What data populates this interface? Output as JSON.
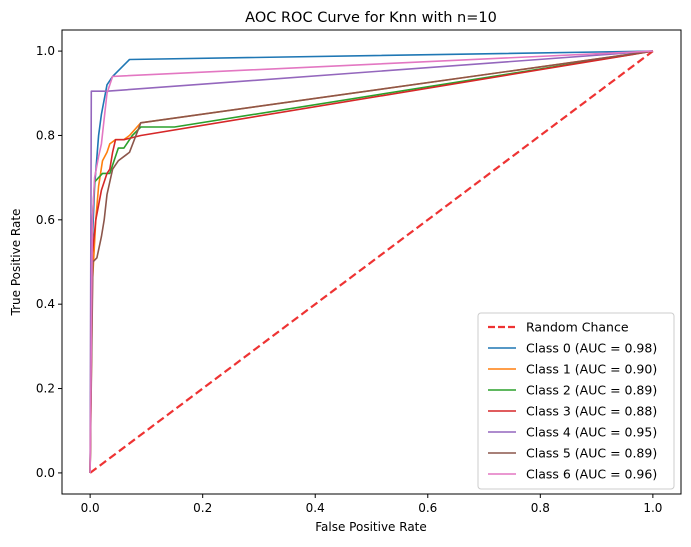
{
  "chart_data": {
    "type": "line",
    "title": "AOC ROC Curve for Knn with n=10",
    "xlabel": "False Positive Rate",
    "ylabel": "True Positive Rate",
    "xlim": [
      -0.05,
      1.05
    ],
    "ylim": [
      -0.05,
      1.05
    ],
    "xticks": [
      "0.0",
      "0.2",
      "0.4",
      "0.6",
      "0.8",
      "1.0"
    ],
    "yticks": [
      "0.0",
      "0.2",
      "0.4",
      "0.6",
      "0.8",
      "1.0"
    ],
    "grid": false,
    "legend_position": "lower-right",
    "series": [
      {
        "name": "Random Chance",
        "color": "#ee3333",
        "dashed": true,
        "x": [
          0,
          1
        ],
        "y": [
          0,
          1
        ]
      },
      {
        "name": "Class 0 (AUC = 0.98)",
        "color": "#1f77b4",
        "x": [
          0,
          0.004,
          0.008,
          0.015,
          0.02,
          0.03,
          0.04,
          0.07,
          1.0
        ],
        "y": [
          0,
          0.55,
          0.68,
          0.8,
          0.85,
          0.92,
          0.94,
          0.98,
          1.0
        ]
      },
      {
        "name": "Class 1 (AUC = 0.90)",
        "color": "#ff7f0e",
        "x": [
          0,
          0.004,
          0.01,
          0.015,
          0.022,
          0.03,
          0.035,
          0.045,
          0.06,
          0.07,
          0.09,
          1.0
        ],
        "y": [
          0,
          0.45,
          0.6,
          0.68,
          0.74,
          0.76,
          0.78,
          0.79,
          0.79,
          0.8,
          0.83,
          1.0
        ]
      },
      {
        "name": "Class 2 (AUC = 0.89)",
        "color": "#2ca02c",
        "x": [
          0,
          0.004,
          0.008,
          0.015,
          0.022,
          0.035,
          0.05,
          0.06,
          0.075,
          0.09,
          0.15,
          1.0
        ],
        "y": [
          0,
          0.6,
          0.69,
          0.7,
          0.71,
          0.71,
          0.77,
          0.77,
          0.8,
          0.82,
          0.82,
          1.0
        ]
      },
      {
        "name": "Class 3 (AUC = 0.88)",
        "color": "#d62728",
        "x": [
          0,
          0.004,
          0.01,
          0.02,
          0.03,
          0.035,
          0.04,
          0.045,
          0.06,
          0.09,
          1.0
        ],
        "y": [
          0,
          0.52,
          0.6,
          0.67,
          0.71,
          0.72,
          0.76,
          0.79,
          0.79,
          0.8,
          1.0
        ]
      },
      {
        "name": "Class 4 (AUC = 0.95)",
        "color": "#9467bd",
        "x": [
          0,
          0.002,
          0.03,
          1.0
        ],
        "y": [
          0,
          0.905,
          0.905,
          1.0
        ]
      },
      {
        "name": "Class 5 (AUC = 0.89)",
        "color": "#8c564b",
        "x": [
          0,
          0.005,
          0.012,
          0.02,
          0.025,
          0.03,
          0.04,
          0.05,
          0.07,
          0.09,
          1.0
        ],
        "y": [
          0,
          0.5,
          0.51,
          0.56,
          0.6,
          0.66,
          0.72,
          0.74,
          0.76,
          0.83,
          1.0
        ]
      },
      {
        "name": "Class 6 (AUC = 0.96)",
        "color": "#e377c2",
        "x": [
          0,
          0.004,
          0.008,
          0.015,
          0.02,
          0.03,
          0.04,
          1.0
        ],
        "y": [
          0,
          0.6,
          0.7,
          0.75,
          0.78,
          0.9,
          0.94,
          1.0
        ]
      }
    ]
  }
}
